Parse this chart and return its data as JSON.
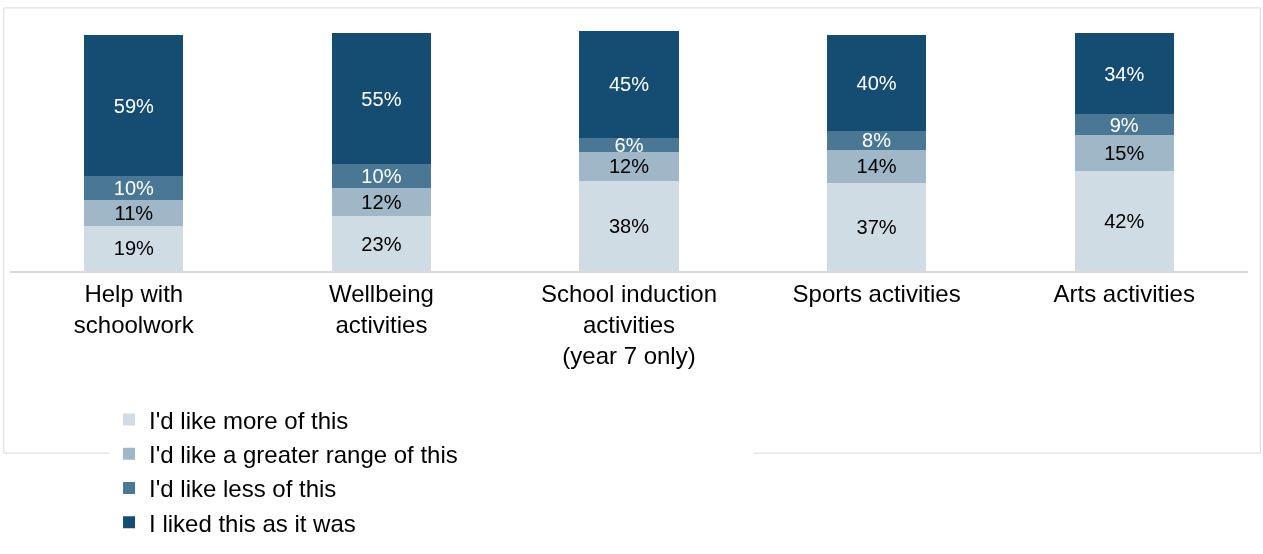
{
  "chart_data": {
    "type": "bar",
    "stacked": true,
    "categories": [
      "Help with\nschoolwork",
      "Wellbeing\nactivities",
      "School induction\nactivities\n(year 7 only)",
      "Sports activities",
      "Arts activities"
    ],
    "series": [
      {
        "name": "I'd like more of this",
        "color": "#d0dce4",
        "values": [
          19,
          23,
          38,
          37,
          42
        ],
        "value_labels": [
          "19%",
          "23%",
          "38%",
          "37%",
          "42%"
        ]
      },
      {
        "name": "I'd like a greater range of this",
        "color": "#9fb7c7",
        "values": [
          11,
          12,
          12,
          14,
          15
        ],
        "value_labels": [
          "11%",
          "12%",
          "12%",
          "14%",
          "15%"
        ]
      },
      {
        "name": "I'd like less of this",
        "color": "#4a7794",
        "values": [
          10,
          10,
          6,
          8,
          9
        ],
        "value_labels": [
          "10%",
          "10%",
          "6%",
          "8%",
          "9%"
        ]
      },
      {
        "name": "I liked this as it was",
        "color": "#154c72",
        "values": [
          59,
          55,
          45,
          40,
          34
        ],
        "value_labels": [
          "59%",
          "55%",
          "45%",
          "40%",
          "34%"
        ]
      }
    ],
    "legend": "bottom"
  }
}
